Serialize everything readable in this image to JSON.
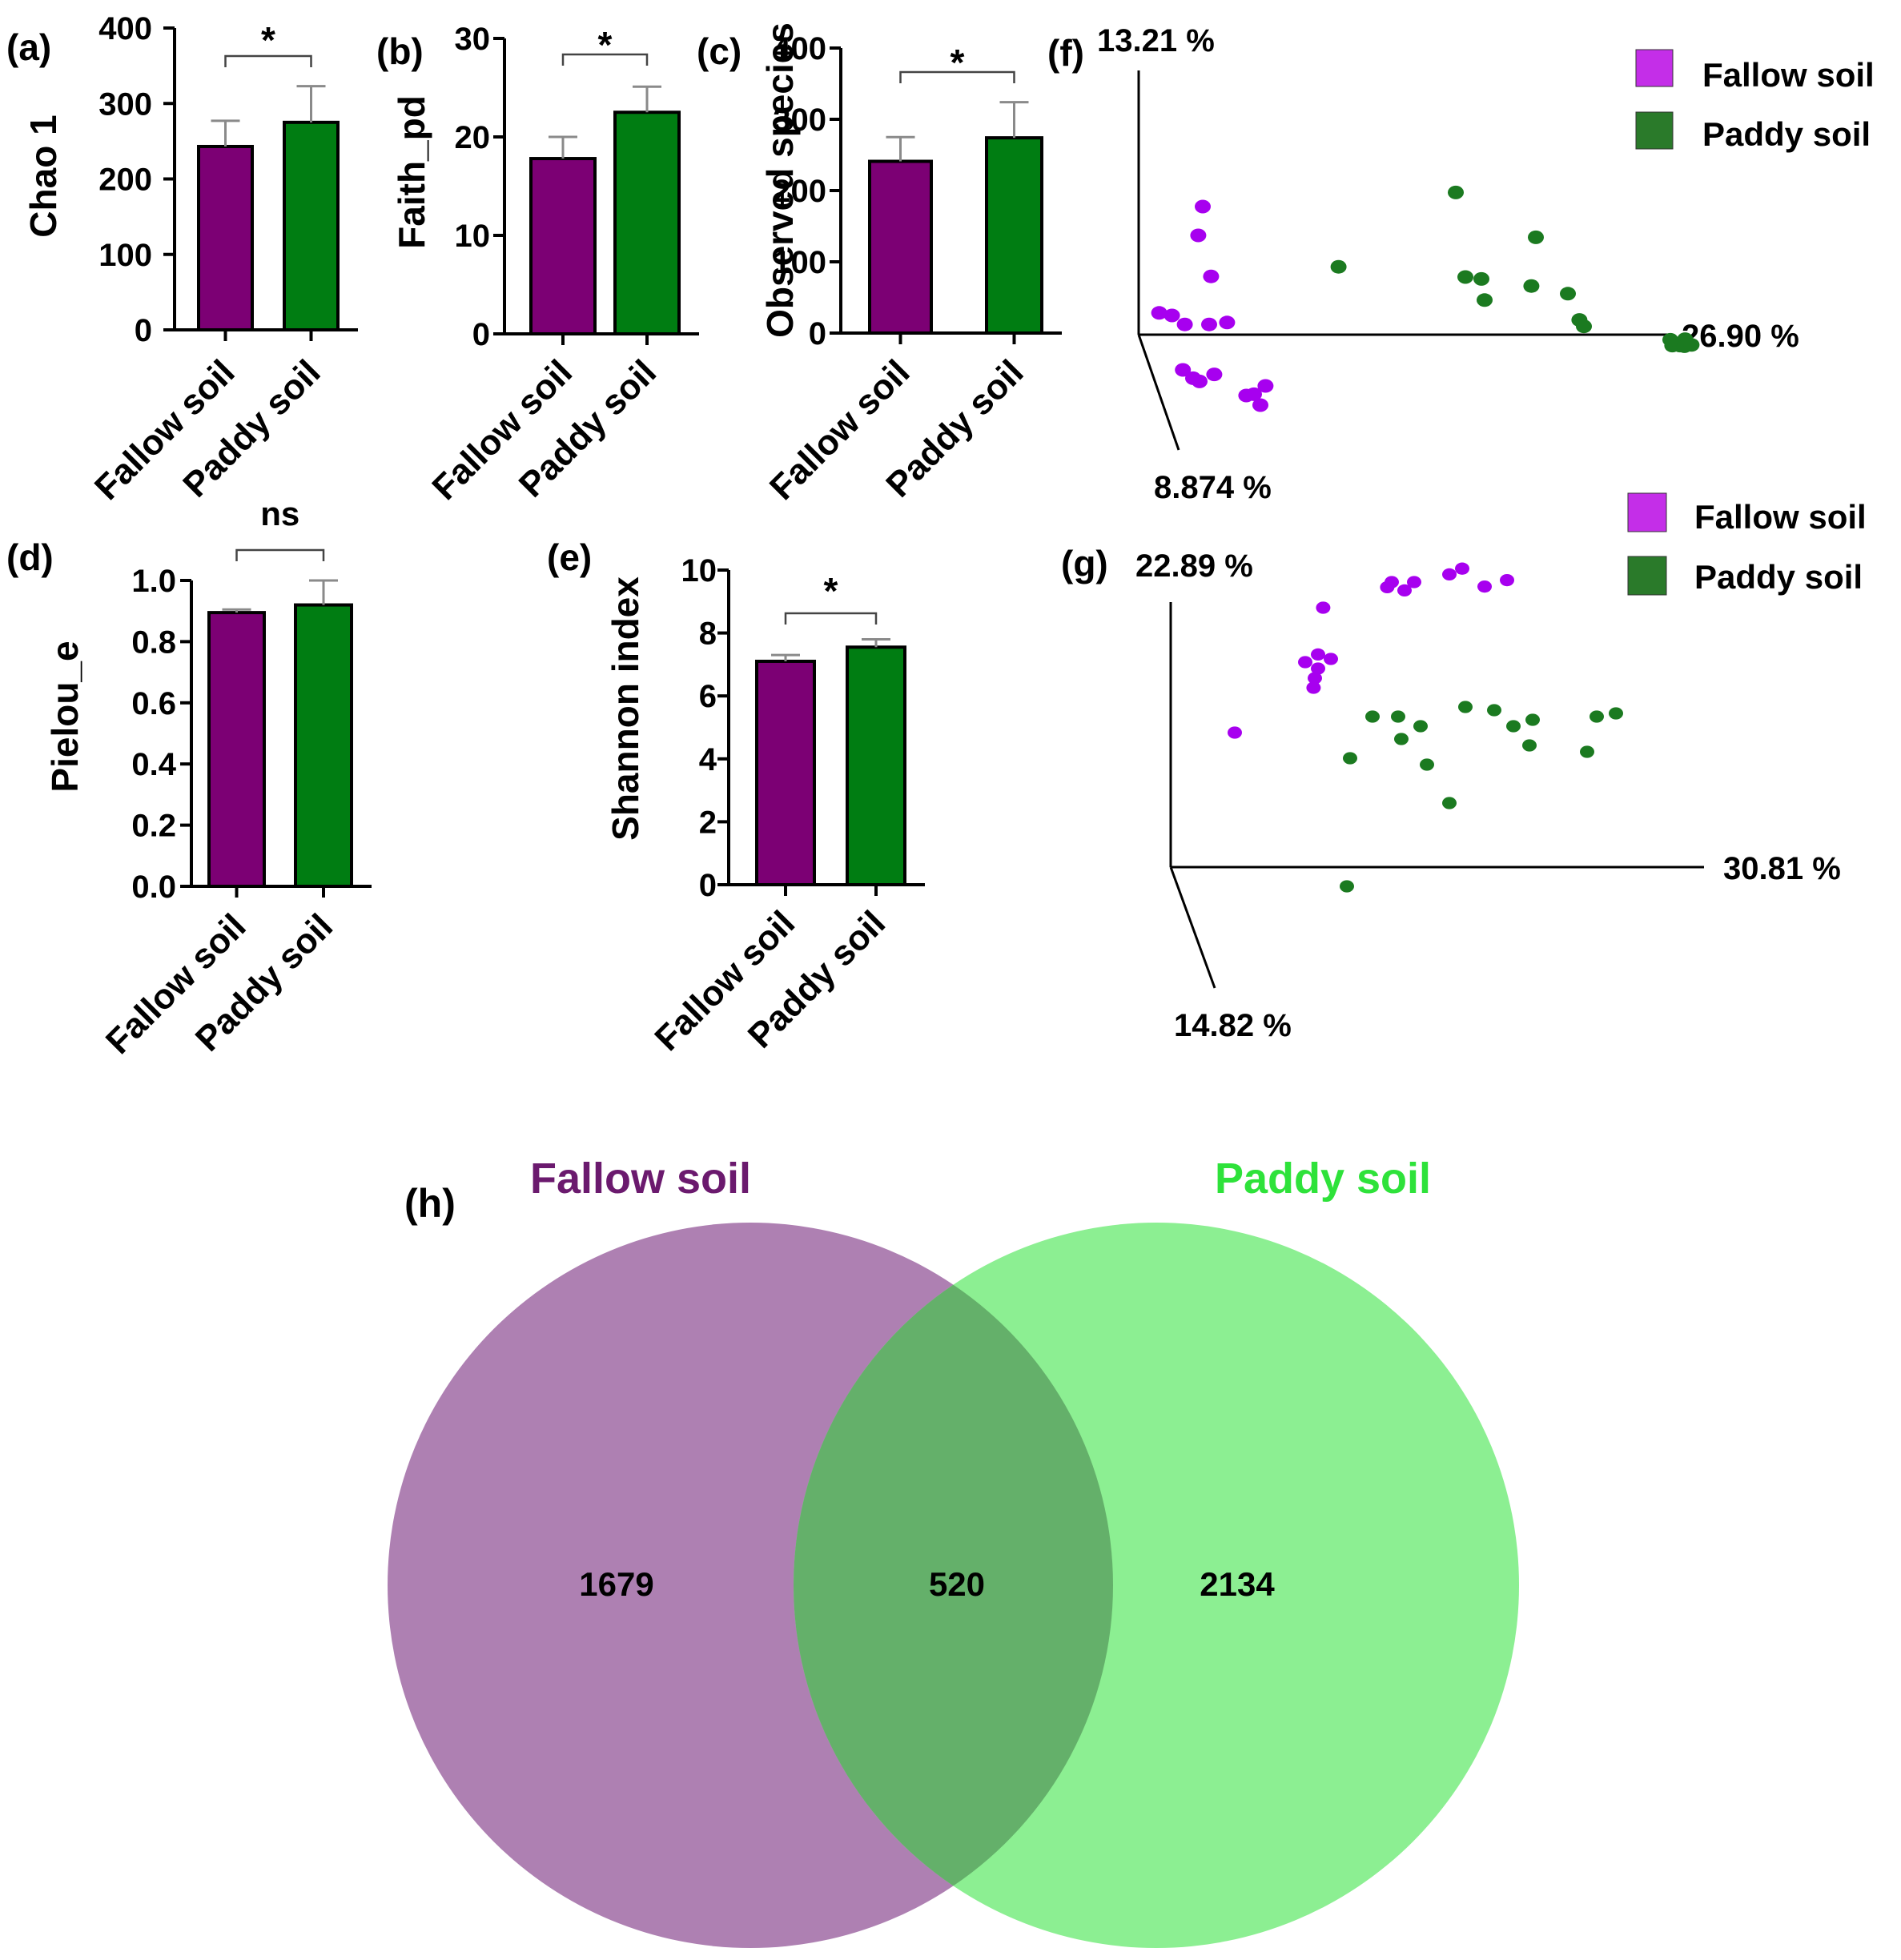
{
  "colors": {
    "fallow_bar": "#7c0074",
    "paddy_bar": "#007d12",
    "fallow_point": "#a700ef",
    "paddy_point": "#1b7a20",
    "fallow_legend": "#c42ee8",
    "paddy_legend": "#2a7a2a",
    "venn_fallow": "#ae80b2",
    "venn_paddy": "#8cef92",
    "venn_overlap": "#64b06a",
    "venn_fallow_title": "#6b1a6e",
    "venn_paddy_title": "#2ee23a",
    "error_bar": "#8a8a8a"
  },
  "chart_data": [
    {
      "id": "a",
      "panel_label": "(a)",
      "type": "bar",
      "categories": [
        "Fallow soil",
        "Paddy soil"
      ],
      "values": [
        243,
        275
      ],
      "errors": [
        34,
        48
      ],
      "ylabel": "Chao 1",
      "ylim": [
        0,
        400
      ],
      "yticks": [
        "0",
        "100",
        "200",
        "300",
        "400"
      ],
      "significance": "*"
    },
    {
      "id": "b",
      "panel_label": "(b)",
      "type": "bar",
      "categories": [
        "Fallow soil",
        "Paddy soil"
      ],
      "values": [
        17.8,
        22.5
      ],
      "errors": [
        2.2,
        2.6
      ],
      "ylabel": "Faith_pd",
      "ylim": [
        0,
        30
      ],
      "yticks": [
        "0",
        "10",
        "20",
        "30"
      ],
      "significance": "*"
    },
    {
      "id": "c",
      "panel_label": "(c)",
      "type": "bar",
      "categories": [
        "Fallow soil",
        "Paddy soil"
      ],
      "values": [
        241,
        274
      ],
      "errors": [
        34,
        50
      ],
      "ylabel": "Observed species",
      "ylim": [
        0,
        400
      ],
      "yticks": [
        "0",
        "100",
        "200",
        "300",
        "400"
      ],
      "significance": "*"
    },
    {
      "id": "d",
      "panel_label": "(d)",
      "type": "bar",
      "categories": [
        "Fallow soil",
        "Paddy soil"
      ],
      "values": [
        0.895,
        0.92
      ],
      "errors": [
        0.01,
        0.08
      ],
      "ylabel": "Pielou_e",
      "ylim": [
        0,
        1.0
      ],
      "yticks": [
        "0.0",
        "0.2",
        "0.4",
        "0.6",
        "0.8",
        "1.0"
      ],
      "significance": "ns"
    },
    {
      "id": "e",
      "panel_label": "(e)",
      "type": "bar",
      "categories": [
        "Fallow soil",
        "Paddy soil"
      ],
      "values": [
        7.1,
        7.55
      ],
      "errors": [
        0.2,
        0.25
      ],
      "ylabel": "Shannon index",
      "ylim": [
        0,
        10
      ],
      "yticks": [
        "0",
        "2",
        "4",
        "6",
        "8",
        "10"
      ],
      "significance": "*"
    },
    {
      "id": "f",
      "panel_label": "(f)",
      "type": "scatter",
      "axis_labels": {
        "axis1": "26.90 %",
        "axis2": "13.21 %",
        "axis3": "8.874 %"
      },
      "legend": [
        "Fallow soil",
        "Paddy soil"
      ],
      "series": [
        {
          "name": "Fallow soil",
          "points": [
            [
              1.0,
              2.0
            ],
            [
              0.93,
              1.55
            ],
            [
              1.13,
              0.91
            ],
            [
              0.32,
              0.34
            ],
            [
              0.52,
              0.3
            ],
            [
              0.72,
              0.16
            ],
            [
              1.1,
              0.16
            ],
            [
              1.38,
              0.19
            ],
            [
              0.69,
              -0.55
            ],
            [
              0.85,
              -0.68
            ],
            [
              0.95,
              -0.73
            ],
            [
              1.18,
              -0.62
            ],
            [
              1.68,
              -0.95
            ],
            [
              1.8,
              -0.93
            ],
            [
              1.98,
              -0.8
            ],
            [
              1.9,
              -1.1
            ]
          ]
        },
        {
          "name": "Paddy soil",
          "points": [
            [
              3.12,
              1.06
            ],
            [
              5.1,
              0.9
            ],
            [
              5.35,
              0.87
            ],
            [
              5.4,
              0.54
            ],
            [
              6.13,
              0.76
            ],
            [
              6.7,
              0.64
            ],
            [
              6.95,
              0.13
            ],
            [
              6.88,
              0.23
            ],
            [
              4.95,
              2.22
            ],
            [
              6.2,
              1.52
            ],
            [
              8.3,
              -0.08
            ],
            [
              8.53,
              -0.07
            ],
            [
              8.33,
              -0.17
            ],
            [
              8.45,
              -0.17
            ],
            [
              8.52,
              -0.18
            ],
            [
              8.63,
              -0.16
            ]
          ]
        }
      ]
    },
    {
      "id": "g",
      "panel_label": "(g)",
      "type": "scatter",
      "axis_labels": {
        "axis1": "30.81 %",
        "axis2": "22.89 %",
        "axis3": "14.82 %"
      },
      "legend": [
        "Fallow soil",
        "Paddy soil"
      ],
      "series": [
        {
          "name": "Fallow soil",
          "points": [
            [
              1.0,
              2.1
            ],
            [
              2.38,
              4.05
            ],
            [
              2.3,
              3.32
            ],
            [
              2.1,
              3.2
            ],
            [
              2.5,
              3.25
            ],
            [
              2.3,
              3.1
            ],
            [
              2.25,
              2.95
            ],
            [
              2.23,
              2.8
            ],
            [
              3.65,
              4.32
            ],
            [
              3.45,
              4.45
            ],
            [
              3.8,
              4.45
            ],
            [
              3.38,
              4.37
            ],
            [
              4.35,
              4.57
            ],
            [
              4.55,
              4.66
            ],
            [
              4.9,
              4.38
            ],
            [
              5.25,
              4.48
            ]
          ]
        },
        {
          "name": "Paddy soil",
          "points": [
            [
              2.8,
              1.7
            ],
            [
              3.15,
              2.35
            ],
            [
              3.55,
              2.35
            ],
            [
              3.6,
              2.0
            ],
            [
              3.9,
              2.2
            ],
            [
              4.0,
              1.6
            ],
            [
              4.35,
              1.0
            ],
            [
              4.6,
              2.5
            ],
            [
              5.05,
              2.45
            ],
            [
              5.35,
              2.2
            ],
            [
              5.6,
              1.9
            ],
            [
              5.65,
              2.3
            ],
            [
              6.5,
              1.8
            ],
            [
              6.65,
              2.35
            ],
            [
              6.95,
              2.4
            ],
            [
              2.75,
              -0.3
            ]
          ]
        }
      ]
    },
    {
      "id": "h",
      "panel_label": "(h)",
      "type": "venn",
      "sets": [
        {
          "name": "Fallow soil",
          "unique": 1679
        },
        {
          "name": "Paddy soil",
          "unique": 2134
        }
      ],
      "intersection": 520
    }
  ]
}
